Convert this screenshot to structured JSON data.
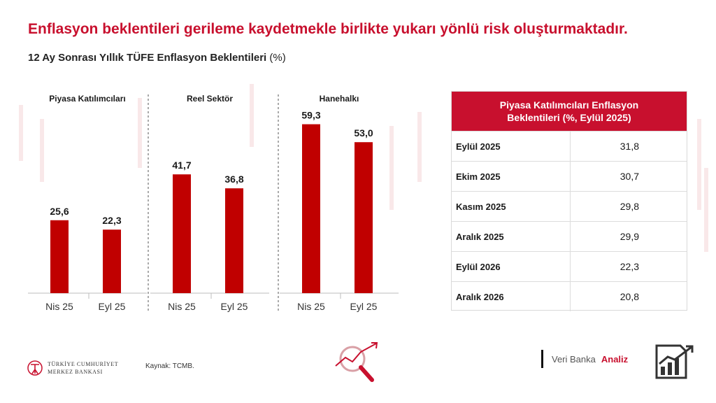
{
  "headline": "Enflasyon beklentileri gerileme kaydetmekle birlikte yukarı yönlü risk oluşturmaktadır.",
  "subtitle": {
    "main": "12 Ay Sonrası Yıllık TÜFE Enflasyon Beklentileri",
    "unit": "(%)"
  },
  "colors": {
    "accent": "#c8102e",
    "bar": "#c00000"
  },
  "chart_data": {
    "type": "bar",
    "title": "12 Ay Sonrası Yıllık TÜFE Enflasyon Beklentileri (%)",
    "ylim": [
      0,
      70
    ],
    "grid": false,
    "panels": [
      {
        "label": "Piyasa Katılımcıları",
        "categories": [
          "Nis 25",
          "Eyl 25"
        ],
        "values": [
          25.6,
          22.3
        ],
        "value_labels": [
          "25,6",
          "22,3"
        ]
      },
      {
        "label": "Reel Sektör",
        "categories": [
          "Nis 25",
          "Eyl 25"
        ],
        "values": [
          41.7,
          36.8
        ],
        "value_labels": [
          "41,7",
          "36,8"
        ]
      },
      {
        "label": "Hanehalkı",
        "categories": [
          "Nis 25",
          "Eyl 25"
        ],
        "values": [
          59.3,
          53.0
        ],
        "value_labels": [
          "59,3",
          "53,0"
        ]
      }
    ]
  },
  "table": {
    "header": "Piyasa Katılımcıları Enflasyon Beklentileri (%, Eylül 2025)",
    "rows": [
      {
        "period": "Eylül 2025",
        "value": "31,8"
      },
      {
        "period": "Ekim 2025",
        "value": "30,7"
      },
      {
        "period": "Kasım 2025",
        "value": "29,8"
      },
      {
        "period": "Aralık 2025",
        "value": "29,9"
      },
      {
        "period": "Eylül 2026",
        "value": "22,3"
      },
      {
        "period": "Aralık 2026",
        "value": "20,8"
      }
    ]
  },
  "footer": {
    "bank_line1": "TÜRKİYE CUMHURİYET",
    "bank_line2": "MERKEZ BANKASI",
    "source": "Kaynak: TCMB.",
    "brand_1": "Veri Banka",
    "brand_2": "Analiz",
    "logo_icon": "tcmb-logo-icon",
    "magnifier_icon": "magnifier-trend-icon",
    "brand_icon": "bar-chart-trend-icon"
  }
}
